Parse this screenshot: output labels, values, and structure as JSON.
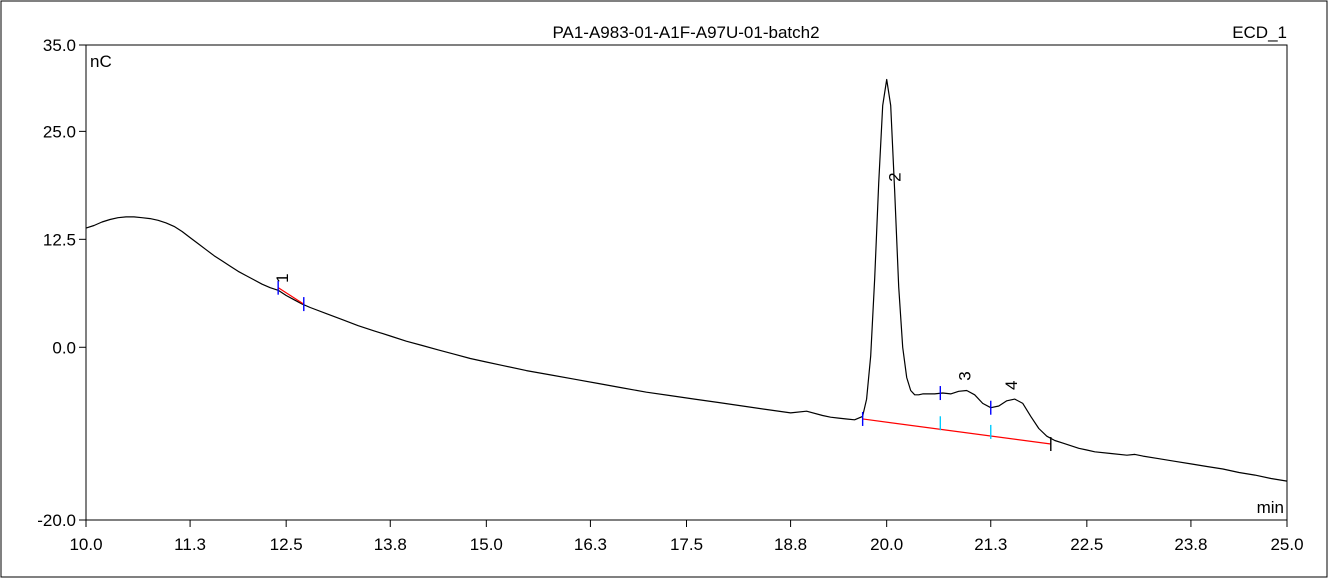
{
  "chart_data": {
    "type": "line",
    "title": "PA1-A983-01-A1F-A97U-01-batch2",
    "channel_label": "ECD_1",
    "ylabel": "nC",
    "xlabel": "min",
    "xlim": [
      10.0,
      25.0
    ],
    "ylim": [
      -20.0,
      35.0
    ],
    "x_ticks": [
      "10.0",
      "11.3",
      "12.5",
      "13.8",
      "15.0",
      "16.3",
      "17.5",
      "18.8",
      "20.0",
      "21.3",
      "22.5",
      "23.8",
      "25.0"
    ],
    "y_ticks": [
      "35.0",
      "25.0",
      "12.5",
      "0.0",
      "-20.0"
    ],
    "grid": false,
    "colors": {
      "trace": "#000000",
      "baseline": "#ff0000",
      "peak_marker": "#0000ff",
      "peak_marker_light": "#00ccff"
    },
    "series": [
      {
        "x": [
          10.0,
          10.1,
          10.2,
          10.3,
          10.4,
          10.5,
          10.6,
          10.7,
          10.8,
          10.9,
          11.0,
          11.1,
          11.2,
          11.3,
          11.4,
          11.5,
          11.6,
          11.7,
          11.8,
          11.9,
          12.0,
          12.1,
          12.2,
          12.3,
          12.4,
          12.45,
          12.5,
          12.6,
          12.7,
          12.8,
          13.0,
          13.2,
          13.4,
          13.6,
          13.8,
          14.0,
          14.2,
          14.4,
          14.6,
          14.8,
          15.0,
          15.2,
          15.5,
          15.8,
          16.1,
          16.4,
          16.7,
          17.0,
          17.3,
          17.6,
          17.9,
          18.2,
          18.5,
          18.8,
          19.0,
          19.2,
          19.3,
          19.4,
          19.5,
          19.6,
          19.7,
          19.75,
          19.8,
          19.85,
          19.9,
          19.95,
          20.0,
          20.05,
          20.1,
          20.15,
          20.2,
          20.25,
          20.3,
          20.35,
          20.4,
          20.45,
          20.5,
          20.55,
          20.6,
          20.7,
          20.8,
          20.9,
          21.0,
          21.1,
          21.2,
          21.3,
          21.4,
          21.5,
          21.6,
          21.7,
          21.8,
          21.9,
          22.0,
          22.1,
          22.2,
          22.3,
          22.4,
          22.5,
          22.6,
          22.8,
          23.0,
          23.1,
          23.2,
          23.4,
          23.6,
          23.8,
          24.0,
          24.2,
          24.4,
          24.6,
          24.8,
          25.0
        ],
        "y": [
          13.8,
          14.1,
          14.5,
          14.8,
          15.0,
          15.1,
          15.1,
          15.0,
          14.9,
          14.7,
          14.4,
          14.0,
          13.4,
          12.7,
          12.0,
          11.3,
          10.6,
          10.0,
          9.4,
          8.8,
          8.3,
          7.8,
          7.3,
          6.9,
          6.6,
          6.3,
          6.0,
          5.5,
          5.0,
          4.6,
          3.9,
          3.2,
          2.5,
          1.9,
          1.3,
          0.7,
          0.2,
          -0.3,
          -0.8,
          -1.3,
          -1.7,
          -2.1,
          -2.7,
          -3.2,
          -3.7,
          -4.2,
          -4.7,
          -5.2,
          -5.6,
          -6.0,
          -6.4,
          -6.8,
          -7.2,
          -7.6,
          -7.4,
          -7.9,
          -8.1,
          -8.2,
          -8.3,
          -8.4,
          -8.0,
          -6.0,
          -1.0,
          8.0,
          19.0,
          28.0,
          31.0,
          28.0,
          18.0,
          7.0,
          0.0,
          -3.5,
          -5.0,
          -5.5,
          -5.5,
          -5.4,
          -5.4,
          -5.4,
          -5.4,
          -5.3,
          -5.4,
          -5.1,
          -5.0,
          -5.5,
          -6.5,
          -7.0,
          -6.8,
          -6.2,
          -6.0,
          -6.5,
          -8.0,
          -9.4,
          -10.3,
          -10.8,
          -11.1,
          -11.4,
          -11.7,
          -11.9,
          -12.1,
          -12.3,
          -12.5,
          -12.4,
          -12.6,
          -12.9,
          -13.2,
          -13.5,
          -13.8,
          -14.1,
          -14.5,
          -14.8,
          -15.2,
          -15.5
        ]
      }
    ],
    "peaks": [
      {
        "label": "1",
        "x": 12.45
      },
      {
        "label": "2",
        "x": 20.1
      },
      {
        "label": "3",
        "x": 20.97
      },
      {
        "label": "4",
        "x": 21.55
      }
    ],
    "integration_baselines": [
      {
        "x": [
          12.4,
          12.72
        ],
        "y": [
          6.9,
          5.0
        ]
      },
      {
        "x": [
          19.7,
          22.05
        ],
        "y": [
          -8.3,
          -11.2
        ]
      }
    ],
    "delimiters": [
      {
        "x": 12.4,
        "y": 6.9,
        "color": "#0000ff"
      },
      {
        "x": 12.72,
        "y": 5.0,
        "color": "#0000ff"
      },
      {
        "x": 19.7,
        "y": -8.3,
        "color": "#0000ff"
      },
      {
        "x": 20.67,
        "y": -5.3,
        "color": "#0000ff"
      },
      {
        "x": 20.67,
        "y": -8.8,
        "color": "#00ccff"
      },
      {
        "x": 21.3,
        "y": -7.0,
        "color": "#0000ff"
      },
      {
        "x": 21.3,
        "y": -9.8,
        "color": "#00ccff"
      },
      {
        "x": 22.05,
        "y": -11.2,
        "color": "#000000"
      }
    ]
  }
}
